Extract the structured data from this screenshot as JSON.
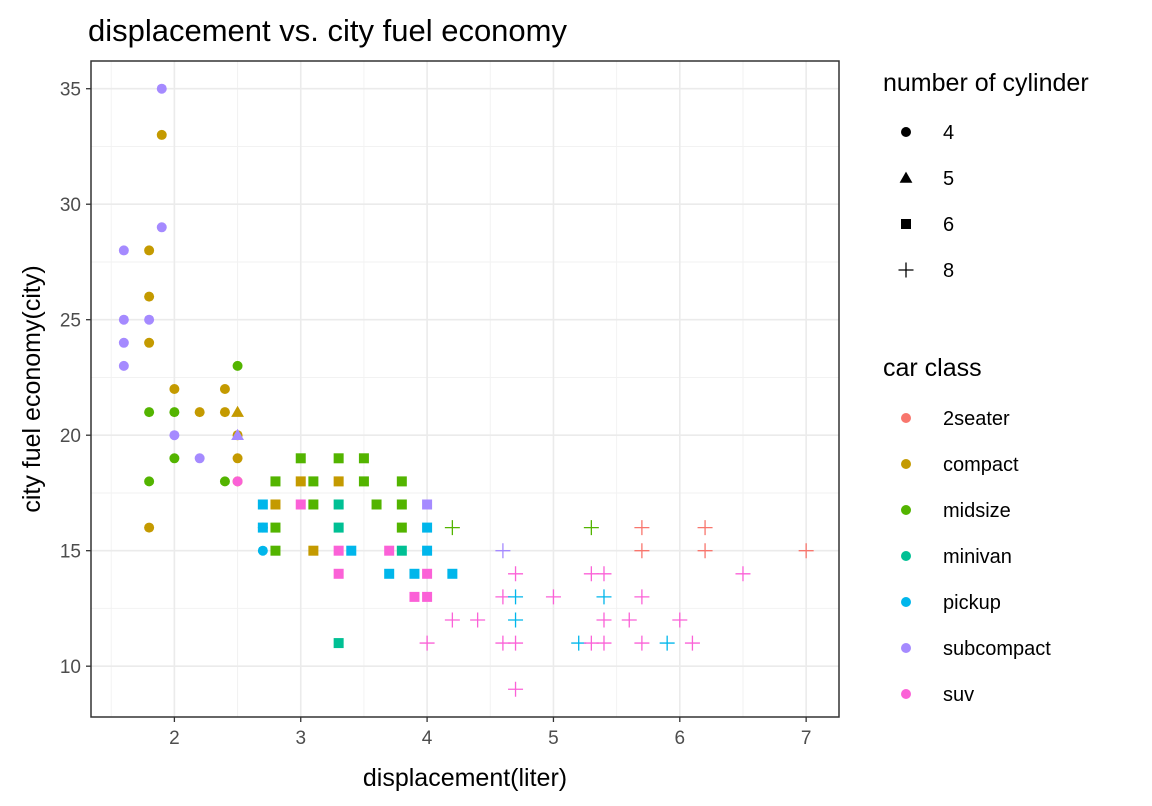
{
  "chart_data": {
    "type": "scatter",
    "title": "displacement vs. city fuel economy",
    "xlabel": "displacement(liter)",
    "ylabel": "city fuel economy(city)",
    "xlim": [
      1.34,
      7.26
    ],
    "ylim": [
      7.8,
      36.2
    ],
    "xticks": [
      2,
      3,
      4,
      5,
      6,
      7
    ],
    "yticks": [
      10,
      15,
      20,
      25,
      30,
      35
    ],
    "grid": true,
    "theme": "bw",
    "legends": {
      "shape": {
        "title": "number of cylinder",
        "entries": [
          {
            "label": "4",
            "shape": "circle"
          },
          {
            "label": "5",
            "shape": "triangle"
          },
          {
            "label": "6",
            "shape": "square"
          },
          {
            "label": "8",
            "shape": "plus"
          }
        ]
      },
      "color": {
        "title": "car class",
        "entries": [
          {
            "label": "2seater",
            "color": "#F8766D"
          },
          {
            "label": "compact",
            "color": "#C49A00"
          },
          {
            "label": "midsize",
            "color": "#53B400"
          },
          {
            "label": "minivan",
            "color": "#00C094"
          },
          {
            "label": "pickup",
            "color": "#00B6EB"
          },
          {
            "label": "subcompact",
            "color": "#A58AFF"
          },
          {
            "label": "suv",
            "color": "#FB61D7"
          }
        ]
      },
      "placement": "right"
    },
    "points": [
      {
        "x": 1.9,
        "y": 35,
        "class": "subcompact",
        "cyl": "4"
      },
      {
        "x": 1.9,
        "y": 33,
        "class": "compact",
        "cyl": "4"
      },
      {
        "x": 1.9,
        "y": 29,
        "class": "subcompact",
        "cyl": "4"
      },
      {
        "x": 1.6,
        "y": 28,
        "class": "subcompact",
        "cyl": "4"
      },
      {
        "x": 1.8,
        "y": 28,
        "class": "compact",
        "cyl": "4"
      },
      {
        "x": 1.8,
        "y": 26,
        "class": "compact",
        "cyl": "4"
      },
      {
        "x": 1.6,
        "y": 25,
        "class": "subcompact",
        "cyl": "4"
      },
      {
        "x": 1.8,
        "y": 25,
        "class": "subcompact",
        "cyl": "4"
      },
      {
        "x": 1.6,
        "y": 24,
        "class": "subcompact",
        "cyl": "4"
      },
      {
        "x": 1.8,
        "y": 24,
        "class": "compact",
        "cyl": "4"
      },
      {
        "x": 1.6,
        "y": 23,
        "class": "subcompact",
        "cyl": "4"
      },
      {
        "x": 2.5,
        "y": 23,
        "class": "midsize",
        "cyl": "4"
      },
      {
        "x": 2.0,
        "y": 22,
        "class": "compact",
        "cyl": "4"
      },
      {
        "x": 2.4,
        "y": 22,
        "class": "compact",
        "cyl": "4"
      },
      {
        "x": 1.8,
        "y": 21,
        "class": "midsize",
        "cyl": "4"
      },
      {
        "x": 2.0,
        "y": 21,
        "class": "midsize",
        "cyl": "4"
      },
      {
        "x": 2.2,
        "y": 21,
        "class": "compact",
        "cyl": "4"
      },
      {
        "x": 2.4,
        "y": 21,
        "class": "compact",
        "cyl": "4"
      },
      {
        "x": 2.5,
        "y": 21,
        "class": "compact",
        "cyl": "5"
      },
      {
        "x": 2.0,
        "y": 20,
        "class": "subcompact",
        "cyl": "4"
      },
      {
        "x": 2.5,
        "y": 20,
        "class": "compact",
        "cyl": "4"
      },
      {
        "x": 2.5,
        "y": 20,
        "class": "subcompact",
        "cyl": "5"
      },
      {
        "x": 2.0,
        "y": 19,
        "class": "midsize",
        "cyl": "4"
      },
      {
        "x": 2.2,
        "y": 19,
        "class": "subcompact",
        "cyl": "4"
      },
      {
        "x": 2.5,
        "y": 19,
        "class": "compact",
        "cyl": "4"
      },
      {
        "x": 1.8,
        "y": 18,
        "class": "midsize",
        "cyl": "4"
      },
      {
        "x": 2.4,
        "y": 18,
        "class": "midsize",
        "cyl": "4"
      },
      {
        "x": 2.5,
        "y": 18,
        "class": "compact",
        "cyl": "4"
      },
      {
        "x": 2.5,
        "y": 18,
        "class": "suv",
        "cyl": "4"
      },
      {
        "x": 1.8,
        "y": 16,
        "class": "compact",
        "cyl": "4"
      },
      {
        "x": 2.7,
        "y": 16,
        "class": "minivan",
        "cyl": "4"
      },
      {
        "x": 2.7,
        "y": 15,
        "class": "pickup",
        "cyl": "4"
      },
      {
        "x": 3.0,
        "y": 19,
        "class": "midsize",
        "cyl": "6"
      },
      {
        "x": 3.3,
        "y": 19,
        "class": "midsize",
        "cyl": "6"
      },
      {
        "x": 3.5,
        "y": 19,
        "class": "midsize",
        "cyl": "6"
      },
      {
        "x": 2.8,
        "y": 18,
        "class": "midsize",
        "cyl": "6"
      },
      {
        "x": 3.0,
        "y": 18,
        "class": "compact",
        "cyl": "6"
      },
      {
        "x": 3.1,
        "y": 18,
        "class": "midsize",
        "cyl": "6"
      },
      {
        "x": 3.3,
        "y": 18,
        "class": "compact",
        "cyl": "6"
      },
      {
        "x": 3.5,
        "y": 18,
        "class": "midsize",
        "cyl": "6"
      },
      {
        "x": 3.8,
        "y": 18,
        "class": "midsize",
        "cyl": "6"
      },
      {
        "x": 2.7,
        "y": 17,
        "class": "pickup",
        "cyl": "6"
      },
      {
        "x": 2.8,
        "y": 17,
        "class": "compact",
        "cyl": "6"
      },
      {
        "x": 3.0,
        "y": 17,
        "class": "suv",
        "cyl": "6"
      },
      {
        "x": 3.1,
        "y": 17,
        "class": "midsize",
        "cyl": "6"
      },
      {
        "x": 3.3,
        "y": 17,
        "class": "minivan",
        "cyl": "6"
      },
      {
        "x": 3.6,
        "y": 17,
        "class": "midsize",
        "cyl": "6"
      },
      {
        "x": 3.8,
        "y": 17,
        "class": "midsize",
        "cyl": "6"
      },
      {
        "x": 4.0,
        "y": 17,
        "class": "subcompact",
        "cyl": "6"
      },
      {
        "x": 2.7,
        "y": 16,
        "class": "pickup",
        "cyl": "6"
      },
      {
        "x": 2.8,
        "y": 16,
        "class": "midsize",
        "cyl": "6"
      },
      {
        "x": 3.3,
        "y": 16,
        "class": "minivan",
        "cyl": "6"
      },
      {
        "x": 3.8,
        "y": 16,
        "class": "midsize",
        "cyl": "6"
      },
      {
        "x": 4.0,
        "y": 16,
        "class": "pickup",
        "cyl": "6"
      },
      {
        "x": 2.8,
        "y": 15,
        "class": "midsize",
        "cyl": "6"
      },
      {
        "x": 3.1,
        "y": 15,
        "class": "compact",
        "cyl": "6"
      },
      {
        "x": 3.3,
        "y": 15,
        "class": "suv",
        "cyl": "6"
      },
      {
        "x": 3.4,
        "y": 15,
        "class": "pickup",
        "cyl": "6"
      },
      {
        "x": 3.7,
        "y": 15,
        "class": "suv",
        "cyl": "6"
      },
      {
        "x": 3.8,
        "y": 15,
        "class": "minivan",
        "cyl": "6"
      },
      {
        "x": 4.0,
        "y": 15,
        "class": "pickup",
        "cyl": "6"
      },
      {
        "x": 3.3,
        "y": 14,
        "class": "suv",
        "cyl": "6"
      },
      {
        "x": 3.7,
        "y": 14,
        "class": "pickup",
        "cyl": "6"
      },
      {
        "x": 3.9,
        "y": 14,
        "class": "pickup",
        "cyl": "6"
      },
      {
        "x": 4.0,
        "y": 14,
        "class": "suv",
        "cyl": "6"
      },
      {
        "x": 4.2,
        "y": 14,
        "class": "pickup",
        "cyl": "6"
      },
      {
        "x": 3.9,
        "y": 13,
        "class": "suv",
        "cyl": "6"
      },
      {
        "x": 4.0,
        "y": 13,
        "class": "suv",
        "cyl": "6"
      },
      {
        "x": 3.3,
        "y": 11,
        "class": "minivan",
        "cyl": "6"
      },
      {
        "x": 4.2,
        "y": 16,
        "class": "midsize",
        "cyl": "8"
      },
      {
        "x": 5.3,
        "y": 16,
        "class": "midsize",
        "cyl": "8"
      },
      {
        "x": 5.7,
        "y": 16,
        "class": "2seater",
        "cyl": "8"
      },
      {
        "x": 6.2,
        "y": 16,
        "class": "2seater",
        "cyl": "8"
      },
      {
        "x": 4.6,
        "y": 15,
        "class": "subcompact",
        "cyl": "8"
      },
      {
        "x": 5.7,
        "y": 15,
        "class": "2seater",
        "cyl": "8"
      },
      {
        "x": 6.2,
        "y": 15,
        "class": "2seater",
        "cyl": "8"
      },
      {
        "x": 7.0,
        "y": 15,
        "class": "2seater",
        "cyl": "8"
      },
      {
        "x": 4.7,
        "y": 14,
        "class": "suv",
        "cyl": "8"
      },
      {
        "x": 5.3,
        "y": 14,
        "class": "suv",
        "cyl": "8"
      },
      {
        "x": 5.4,
        "y": 14,
        "class": "suv",
        "cyl": "8"
      },
      {
        "x": 6.5,
        "y": 14,
        "class": "suv",
        "cyl": "8"
      },
      {
        "x": 4.6,
        "y": 13,
        "class": "suv",
        "cyl": "8"
      },
      {
        "x": 4.7,
        "y": 13,
        "class": "pickup",
        "cyl": "8"
      },
      {
        "x": 5.0,
        "y": 13,
        "class": "suv",
        "cyl": "8"
      },
      {
        "x": 5.4,
        "y": 13,
        "class": "pickup",
        "cyl": "8"
      },
      {
        "x": 5.7,
        "y": 13,
        "class": "suv",
        "cyl": "8"
      },
      {
        "x": 4.2,
        "y": 12,
        "class": "suv",
        "cyl": "8"
      },
      {
        "x": 4.4,
        "y": 12,
        "class": "suv",
        "cyl": "8"
      },
      {
        "x": 4.7,
        "y": 12,
        "class": "pickup",
        "cyl": "8"
      },
      {
        "x": 5.4,
        "y": 12,
        "class": "suv",
        "cyl": "8"
      },
      {
        "x": 5.6,
        "y": 12,
        "class": "suv",
        "cyl": "8"
      },
      {
        "x": 6.0,
        "y": 12,
        "class": "suv",
        "cyl": "8"
      },
      {
        "x": 4.0,
        "y": 11,
        "class": "suv",
        "cyl": "8"
      },
      {
        "x": 4.6,
        "y": 11,
        "class": "suv",
        "cyl": "8"
      },
      {
        "x": 4.7,
        "y": 11,
        "class": "suv",
        "cyl": "8"
      },
      {
        "x": 5.2,
        "y": 11,
        "class": "pickup",
        "cyl": "8"
      },
      {
        "x": 5.3,
        "y": 11,
        "class": "suv",
        "cyl": "8"
      },
      {
        "x": 5.4,
        "y": 11,
        "class": "suv",
        "cyl": "8"
      },
      {
        "x": 5.7,
        "y": 11,
        "class": "suv",
        "cyl": "8"
      },
      {
        "x": 5.9,
        "y": 11,
        "class": "pickup",
        "cyl": "8"
      },
      {
        "x": 6.1,
        "y": 11,
        "class": "suv",
        "cyl": "8"
      },
      {
        "x": 4.7,
        "y": 9,
        "class": "suv",
        "cyl": "8"
      }
    ]
  }
}
